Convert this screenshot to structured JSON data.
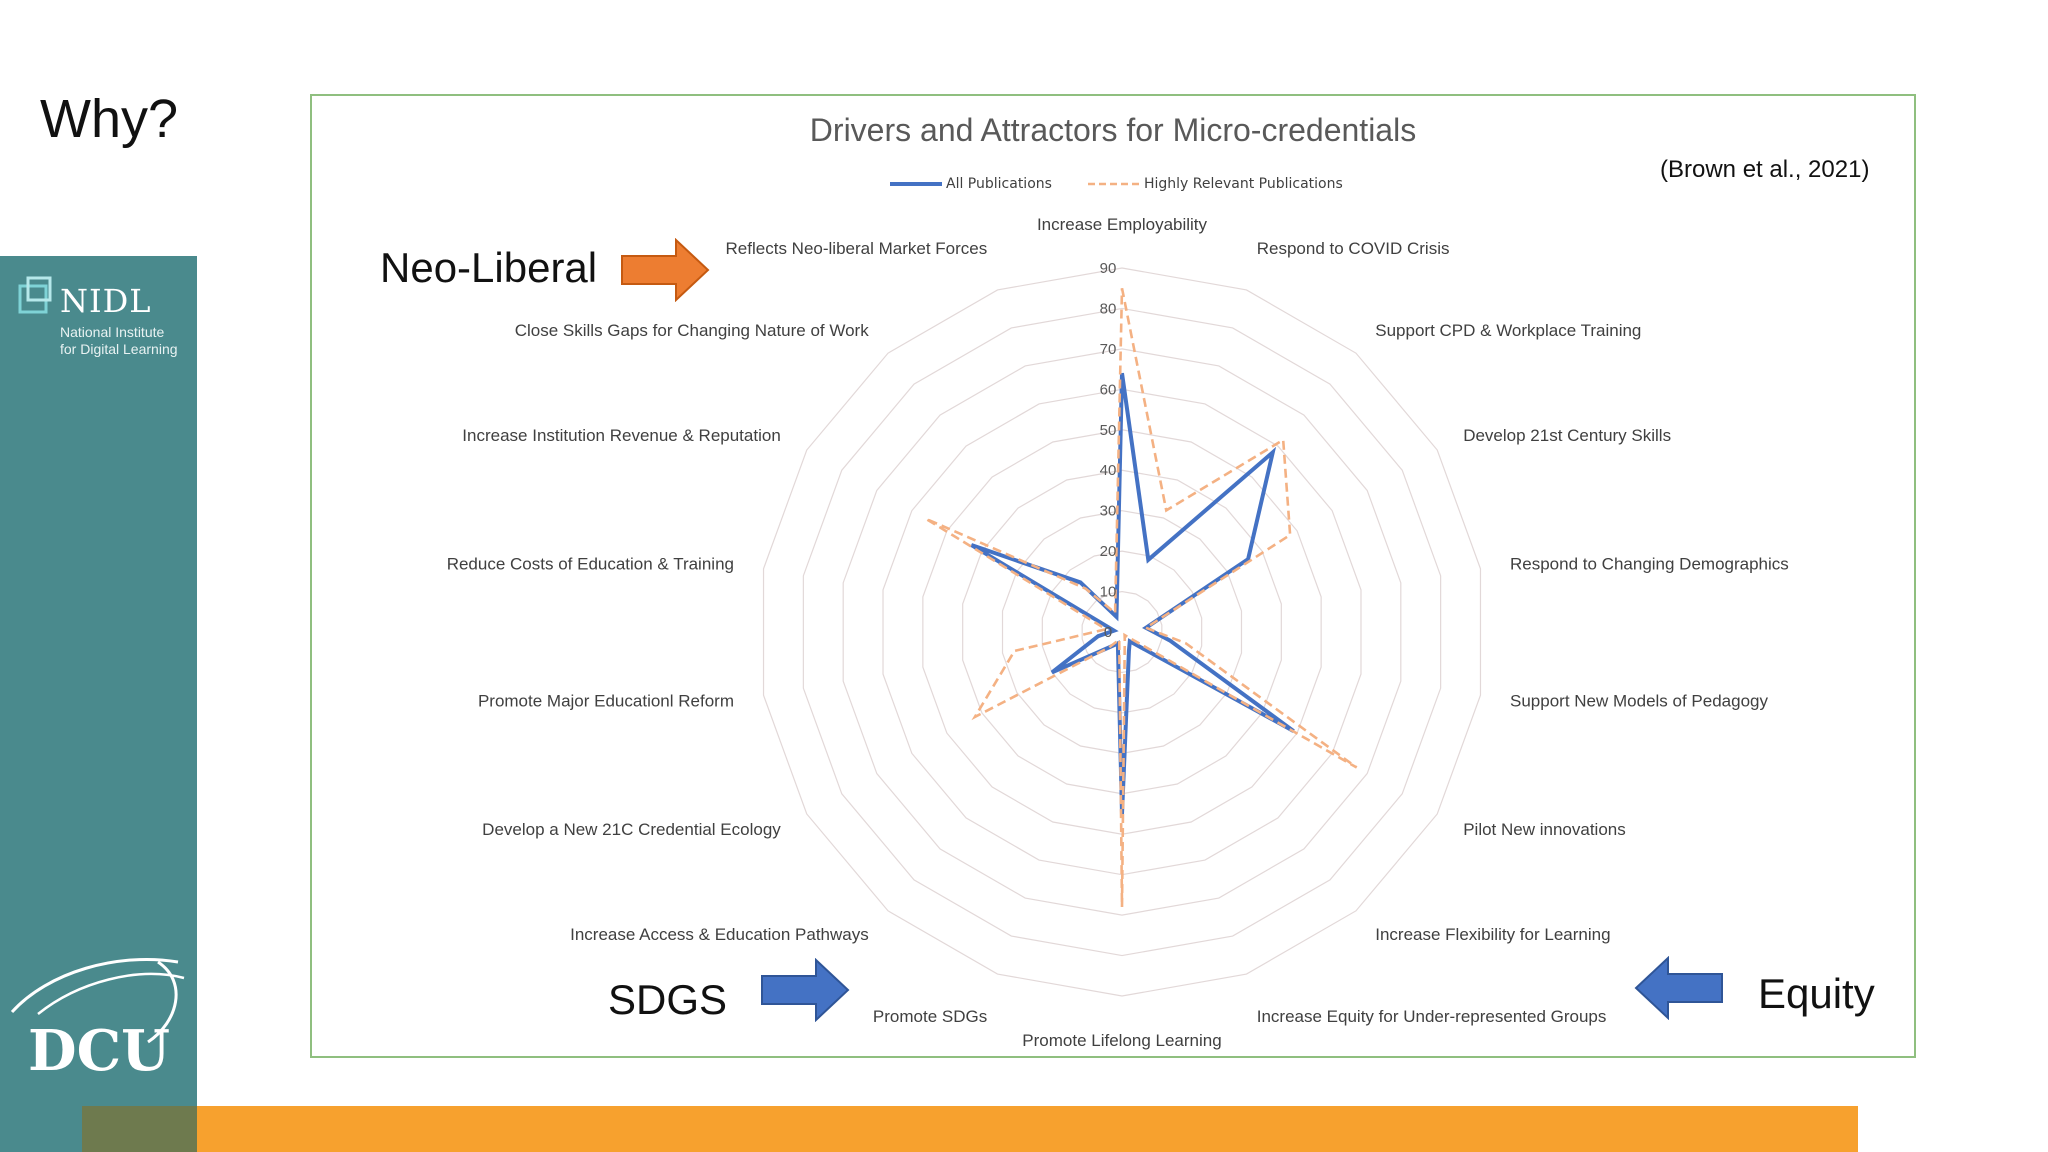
{
  "slide": {
    "title": "Why?",
    "citation": "(Brown et al., 2021)",
    "callouts": {
      "neoliberal": "Neo-Liberal",
      "sdgs": "SDGS",
      "equity": "Equity"
    },
    "arrow_colors": {
      "orange": "#ed7d31",
      "blue": "#4472c4"
    }
  },
  "sidebar": {
    "nidl_name": "NIDL",
    "nidl_sub_1": "National Institute",
    "nidl_sub_2": "for Digital Learning",
    "dcu_text": "DCU",
    "bg_color": "#4a8a8d"
  },
  "chart_data": {
    "type": "radar",
    "title": "Drivers and Attractors for Micro-credentials",
    "categories": [
      "Increase Employability",
      "Respond to COVID Crisis",
      "Support CPD & Workplace Training",
      "Develop 21st Century Skills",
      "Respond to Changing Demographics",
      "Support New Models of Pedagogy",
      "Pilot New innovations",
      "Increase Flexibility for Learning",
      "Increase Equity for Under-represented Groups",
      "Promote Lifelong Learning",
      "Promote SDGs",
      "Increase Access & Education Pathways",
      "Develop a New 21C Credential Ecology",
      "Promote Major Educationl Reform",
      "Reduce Costs of Education & Training",
      "Increase Institution Revenue & Reputation",
      "Close Skills Gaps for Changing Nature of Work",
      "Reflects Neo-liberal Market Forces"
    ],
    "series": [
      {
        "name": "All Publications",
        "color": "#4472c4",
        "dash": false,
        "values": [
          64,
          19,
          58,
          36,
          6,
          12,
          49,
          3,
          5,
          45,
          3,
          5,
          20,
          6,
          2,
          43,
          16,
          4
        ]
      },
      {
        "name": "Highly Relevant Publications",
        "color": "#f4b183",
        "dash": true,
        "values": [
          85,
          32,
          62,
          48,
          6,
          16,
          67,
          1,
          2,
          68,
          2,
          5,
          42,
          27,
          4,
          56,
          14,
          5
        ]
      }
    ],
    "rlim": [
      0,
      90
    ],
    "ticks": [
      0,
      10,
      20,
      30,
      40,
      50,
      60,
      70,
      80,
      90
    ],
    "tick_labels": [
      "0",
      "10",
      "20",
      "30",
      "40",
      "50",
      "60",
      "70",
      "80",
      "90"
    ],
    "grid": true,
    "legend_position": "top"
  }
}
